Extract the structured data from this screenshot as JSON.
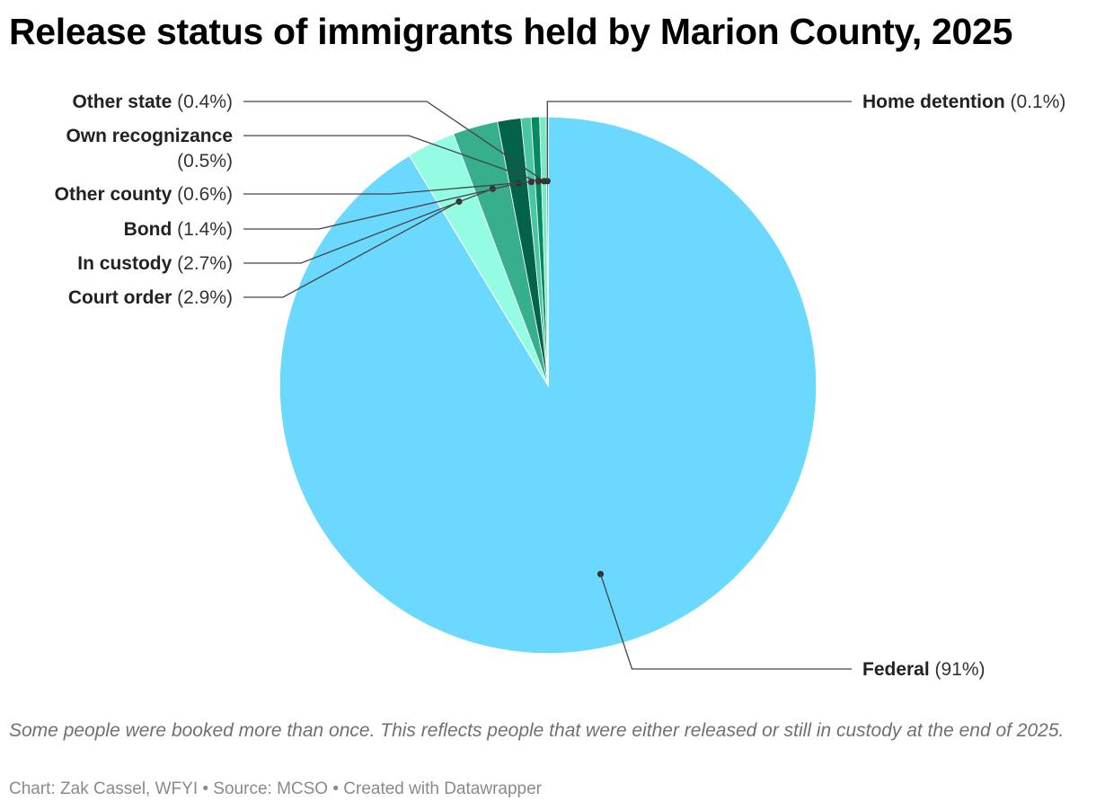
{
  "title": "Release status of immigrants held by Marion County, 2025",
  "notes": "Some people were booked more than once. This reflects people that were either released or still in custody at the end of 2025.",
  "byline": "Chart: Zak Cassel, WFYI • Source: MCSO • Created with Datawrapper",
  "chart_data": {
    "type": "pie",
    "start_angle_deg": 0,
    "direction": "clockwise",
    "slices": [
      {
        "name": "Federal",
        "value": 91,
        "label_pct": "(91%)",
        "color": "#6ad9fd",
        "side": "right"
      },
      {
        "name": "Court order",
        "value": 2.9,
        "label_pct": "(2.9%)",
        "color": "#93fce3",
        "side": "left"
      },
      {
        "name": "In custody",
        "value": 2.7,
        "label_pct": "(2.7%)",
        "color": "#37ae8c",
        "side": "left"
      },
      {
        "name": "Bond",
        "value": 1.4,
        "label_pct": "(1.4%)",
        "color": "#02634a",
        "side": "left"
      },
      {
        "name": "Other county",
        "value": 0.6,
        "label_pct": "(0.6%)",
        "color": "#49c6a3",
        "side": "left"
      },
      {
        "name": "Own recognizance",
        "value": 0.5,
        "label_pct": "(0.5%)",
        "color": "#048a63",
        "side": "left"
      },
      {
        "name": "Other state",
        "value": 0.4,
        "label_pct": "(0.4%)",
        "color": "#7be8c6",
        "side": "left"
      },
      {
        "name": "Home detention",
        "value": 0.1,
        "label_pct": "(0.1%)",
        "color": "#025c40",
        "side": "right"
      }
    ]
  }
}
